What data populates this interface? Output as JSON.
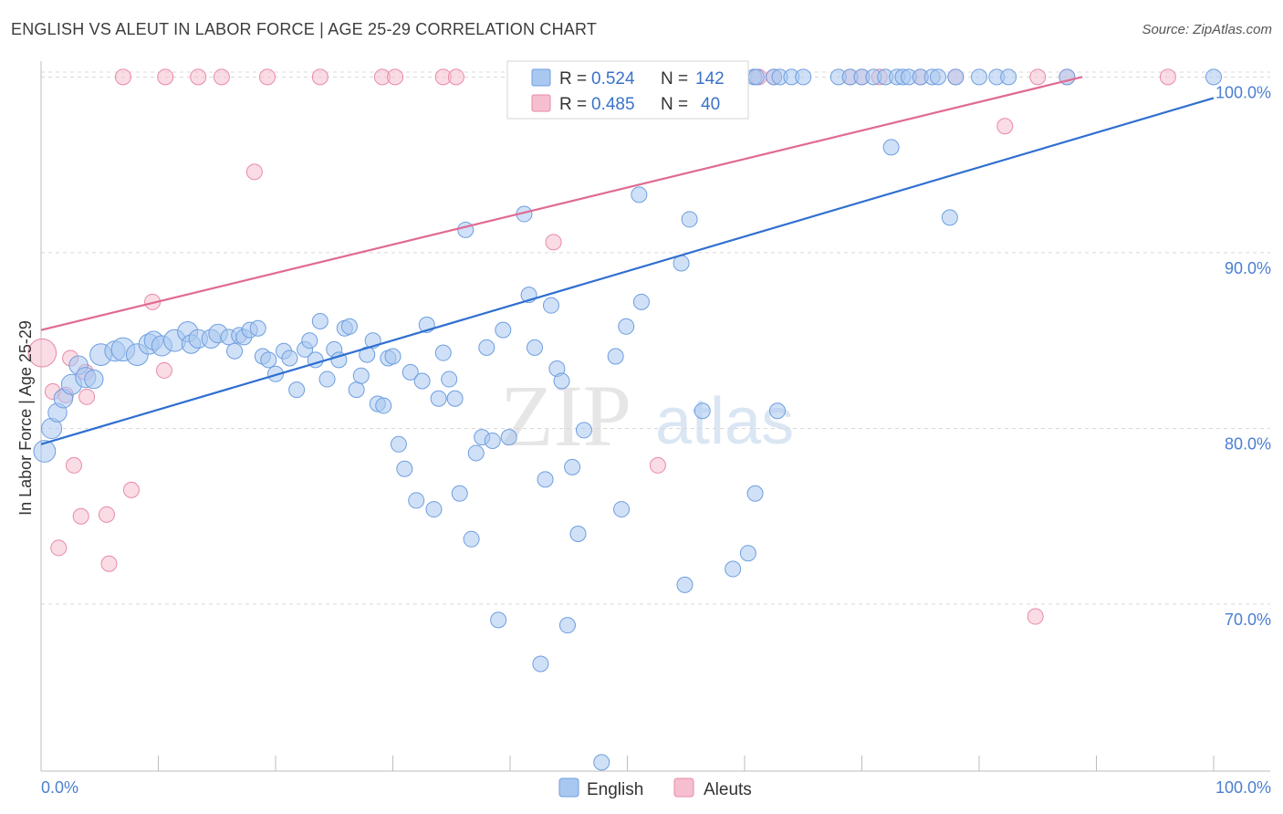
{
  "title": "ENGLISH VS ALEUT IN LABOR FORCE | AGE 25-29 CORRELATION CHART",
  "source": "Source: ZipAtlas.com",
  "watermark": {
    "zip": "ZIP",
    "atlas": "atlas"
  },
  "colors": {
    "english_fill": "#a9c8f0",
    "english_stroke": "#6e9ee0",
    "english_line": "#2f6fd0",
    "aleut_fill": "#f6bfd0",
    "aleut_stroke": "#e88aa8",
    "aleut_line": "#e06a92",
    "tick_text": "#4a7fd0",
    "grid": "#d8d8d8"
  },
  "legend": {
    "english": {
      "r_label": "R =",
      "r_value": "0.524",
      "n_label": "N =",
      "n_value": "142"
    },
    "aleut": {
      "r_label": "R =",
      "r_value": "0.485",
      "n_label": "N =",
      "n_value": "40"
    }
  },
  "bottom_legend": {
    "english": "English",
    "aleut": "Aleuts"
  },
  "chart_data": {
    "type": "scatter",
    "title": "ENGLISH VS ALEUT IN LABOR FORCE | AGE 25-29 CORRELATION CHART",
    "xlabel": "",
    "ylabel": "In Labor Force | Age 25-29",
    "xlim": [
      0,
      100
    ],
    "ylim": [
      60.5,
      100.9
    ],
    "x_tick_labels": {
      "left": "0.0%",
      "right": "100.0%"
    },
    "y_ticks": [
      {
        "value": 100,
        "label": "100.0%"
      },
      {
        "value": 90,
        "label": "90.0%"
      },
      {
        "value": 80,
        "label": "80.0%"
      },
      {
        "value": 70,
        "label": "70.0%"
      }
    ],
    "grid": true,
    "legend_position": "top-center",
    "series": [
      {
        "name": "English",
        "r": 0.524,
        "n": 142,
        "trend": {
          "x": [
            0,
            100
          ],
          "y": [
            79.1,
            98.8
          ]
        },
        "points": [
          [
            0.3,
            78.7,
            1.4
          ],
          [
            0.9,
            80.0,
            1.3
          ],
          [
            1.4,
            80.9,
            1.2
          ],
          [
            1.9,
            81.7,
            1.2
          ],
          [
            2.6,
            82.5,
            1.3
          ],
          [
            3.2,
            83.6,
            1.2
          ],
          [
            3.8,
            82.9,
            1.3
          ],
          [
            4.5,
            82.8,
            1.2
          ],
          [
            5.1,
            84.2,
            1.4
          ],
          [
            6.3,
            84.4,
            1.3
          ],
          [
            7.0,
            84.5,
            1.5
          ],
          [
            8.2,
            84.2,
            1.4
          ],
          [
            9.2,
            84.8,
            1.3
          ],
          [
            9.6,
            85.0,
            1.2
          ],
          [
            10.3,
            84.7,
            1.3
          ],
          [
            11.4,
            85.0,
            1.4
          ],
          [
            12.5,
            85.5,
            1.3
          ],
          [
            12.8,
            84.8,
            1.2
          ],
          [
            13.4,
            85.1,
            1.2
          ],
          [
            14.5,
            85.1,
            1.2
          ],
          [
            15.1,
            85.4,
            1.2
          ],
          [
            16.0,
            85.2,
            1.0
          ],
          [
            16.5,
            84.4,
            1.0
          ],
          [
            16.9,
            85.3,
            1.0
          ],
          [
            17.3,
            85.2,
            1.0
          ],
          [
            17.8,
            85.6,
            1.0
          ],
          [
            18.5,
            85.7,
            1.0
          ],
          [
            18.9,
            84.1,
            1.0
          ],
          [
            19.4,
            83.9,
            1.0
          ],
          [
            20.0,
            83.1,
            1.0
          ],
          [
            20.7,
            84.4,
            1.0
          ],
          [
            21.2,
            84.0,
            1.0
          ],
          [
            21.8,
            82.2,
            1.0
          ],
          [
            22.5,
            84.5,
            1.0
          ],
          [
            22.9,
            85.0,
            1.0
          ],
          [
            23.4,
            83.9,
            1.0
          ],
          [
            23.8,
            86.1,
            1.0
          ],
          [
            24.4,
            82.8,
            1.0
          ],
          [
            25.0,
            84.5,
            1.0
          ],
          [
            25.4,
            83.9,
            1.0
          ],
          [
            25.9,
            85.7,
            1.0
          ],
          [
            26.3,
            85.8,
            1.0
          ],
          [
            26.9,
            82.2,
            1.0
          ],
          [
            27.3,
            83.0,
            1.0
          ],
          [
            27.8,
            84.2,
            1.0
          ],
          [
            28.3,
            85.0,
            1.0
          ],
          [
            28.7,
            81.4,
            1.0
          ],
          [
            29.2,
            81.3,
            1.0
          ],
          [
            29.6,
            84.0,
            1.0
          ],
          [
            30.0,
            84.1,
            1.0
          ],
          [
            30.5,
            79.1,
            1.0
          ],
          [
            31.0,
            77.7,
            1.0
          ],
          [
            31.5,
            83.2,
            1.0
          ],
          [
            32.0,
            75.9,
            1.0
          ],
          [
            32.5,
            82.7,
            1.0
          ],
          [
            32.9,
            85.9,
            1.0
          ],
          [
            33.5,
            75.4,
            1.0
          ],
          [
            33.9,
            81.7,
            1.0
          ],
          [
            34.3,
            84.3,
            1.0
          ],
          [
            34.8,
            82.8,
            1.0
          ],
          [
            35.3,
            81.7,
            1.0
          ],
          [
            35.7,
            76.3,
            1.0
          ],
          [
            36.2,
            91.3,
            1.0
          ],
          [
            36.7,
            73.7,
            1.0
          ],
          [
            37.1,
            78.6,
            1.0
          ],
          [
            37.6,
            79.5,
            1.0
          ],
          [
            38.0,
            84.6,
            1.0
          ],
          [
            38.5,
            79.3,
            1.0
          ],
          [
            39.0,
            69.1,
            1.0
          ],
          [
            39.4,
            85.6,
            1.0
          ],
          [
            39.9,
            79.5,
            1.0
          ],
          [
            41.2,
            92.2,
            1.0
          ],
          [
            41.6,
            87.6,
            1.0
          ],
          [
            42.1,
            84.6,
            1.0
          ],
          [
            42.6,
            66.6,
            1.0
          ],
          [
            43.0,
            77.1,
            1.0
          ],
          [
            43.5,
            87.0,
            1.0
          ],
          [
            44.0,
            83.4,
            1.0
          ],
          [
            44.4,
            82.7,
            1.0
          ],
          [
            44.9,
            68.8,
            1.0
          ],
          [
            45.3,
            77.8,
            1.0
          ],
          [
            45.8,
            74.0,
            1.0
          ],
          [
            46.3,
            79.9,
            1.0
          ],
          [
            47.8,
            61.0,
            1.0
          ],
          [
            49.0,
            84.1,
            1.0
          ],
          [
            49.5,
            75.4,
            1.0
          ],
          [
            49.9,
            85.8,
            1.0
          ],
          [
            51.0,
            93.3,
            1.0
          ],
          [
            51.2,
            87.2,
            1.0
          ],
          [
            52.0,
            100.0,
            1.0
          ],
          [
            53.5,
            100.0,
            1.0
          ],
          [
            54.6,
            89.4,
            1.0
          ],
          [
            54.9,
            71.1,
            1.0
          ],
          [
            55.3,
            91.9,
            1.0
          ],
          [
            56.4,
            81.0,
            1.0
          ],
          [
            57.0,
            100.0,
            1.0
          ],
          [
            58.5,
            100.0,
            1.0
          ],
          [
            59.0,
            72.0,
            1.0
          ],
          [
            60.3,
            72.9,
            1.0
          ],
          [
            60.8,
            100.0,
            1.0
          ],
          [
            60.9,
            76.3,
            1.0
          ],
          [
            61.0,
            100.0,
            1.0
          ],
          [
            62.5,
            100.0,
            1.0
          ],
          [
            62.8,
            81.0,
            1.0
          ],
          [
            63.0,
            100.0,
            1.0
          ],
          [
            64.0,
            100.0,
            1.0
          ],
          [
            65.0,
            100.0,
            1.0
          ],
          [
            68.0,
            100.0,
            1.0
          ],
          [
            69.0,
            100.0,
            1.0
          ],
          [
            70.0,
            100.0,
            1.0
          ],
          [
            71.0,
            100.0,
            1.0
          ],
          [
            72.0,
            100.0,
            1.0
          ],
          [
            72.5,
            96.0,
            1.0
          ],
          [
            73.0,
            100.0,
            1.0
          ],
          [
            73.5,
            100.0,
            1.0
          ],
          [
            74.0,
            100.0,
            1.0
          ],
          [
            75.0,
            100.0,
            1.0
          ],
          [
            76.0,
            100.0,
            1.0
          ],
          [
            76.5,
            100.0,
            1.0
          ],
          [
            77.5,
            92.0,
            1.0
          ],
          [
            78.0,
            100.0,
            1.0
          ],
          [
            80.0,
            100.0,
            1.0
          ],
          [
            81.5,
            100.0,
            1.0
          ],
          [
            82.5,
            100.0,
            1.0
          ],
          [
            87.5,
            100.0,
            1.0
          ],
          [
            100.0,
            100.0,
            1.0
          ]
        ]
      },
      {
        "name": "Aleuts",
        "r": 0.485,
        "n": 40,
        "trend": {
          "x": [
            0,
            88.8
          ],
          "y": [
            85.6,
            100.0
          ]
        },
        "points": [
          [
            0.1,
            84.3,
            1.8
          ],
          [
            1.0,
            82.1,
            1.0
          ],
          [
            1.5,
            73.2,
            1.0
          ],
          [
            2.1,
            81.9,
            1.0
          ],
          [
            2.5,
            84.0,
            1.0
          ],
          [
            2.8,
            77.9,
            1.0
          ],
          [
            3.4,
            75.0,
            1.0
          ],
          [
            3.8,
            83.2,
            1.0
          ],
          [
            3.9,
            81.8,
            1.0
          ],
          [
            5.6,
            75.1,
            1.0
          ],
          [
            5.8,
            72.3,
            1.0
          ],
          [
            7.0,
            100.0,
            1.0
          ],
          [
            7.7,
            76.5,
            1.0
          ],
          [
            9.5,
            87.2,
            1.0
          ],
          [
            10.5,
            83.3,
            1.0
          ],
          [
            10.6,
            100.0,
            1.0
          ],
          [
            13.4,
            100.0,
            1.0
          ],
          [
            15.4,
            100.0,
            1.0
          ],
          [
            18.2,
            94.6,
            1.0
          ],
          [
            19.3,
            100.0,
            1.0
          ],
          [
            23.8,
            100.0,
            1.0
          ],
          [
            29.1,
            100.0,
            1.0
          ],
          [
            30.2,
            100.0,
            1.0
          ],
          [
            34.3,
            100.0,
            1.0
          ],
          [
            35.4,
            100.0,
            1.0
          ],
          [
            43.7,
            90.6,
            1.0
          ],
          [
            52.6,
            77.9,
            1.0
          ],
          [
            55.5,
            100.0,
            1.0
          ],
          [
            61.2,
            100.0,
            1.0
          ],
          [
            62.5,
            100.0,
            1.0
          ],
          [
            69.0,
            100.0,
            1.0
          ],
          [
            70.0,
            100.0,
            1.0
          ],
          [
            71.5,
            100.0,
            1.0
          ],
          [
            75.0,
            100.0,
            1.0
          ],
          [
            78.0,
            100.0,
            1.0
          ],
          [
            82.2,
            97.2,
            1.0
          ],
          [
            84.8,
            69.3,
            1.0
          ],
          [
            85.0,
            100.0,
            1.0
          ],
          [
            87.5,
            100.0,
            1.0
          ],
          [
            96.1,
            100.0,
            1.0
          ]
        ]
      }
    ]
  }
}
